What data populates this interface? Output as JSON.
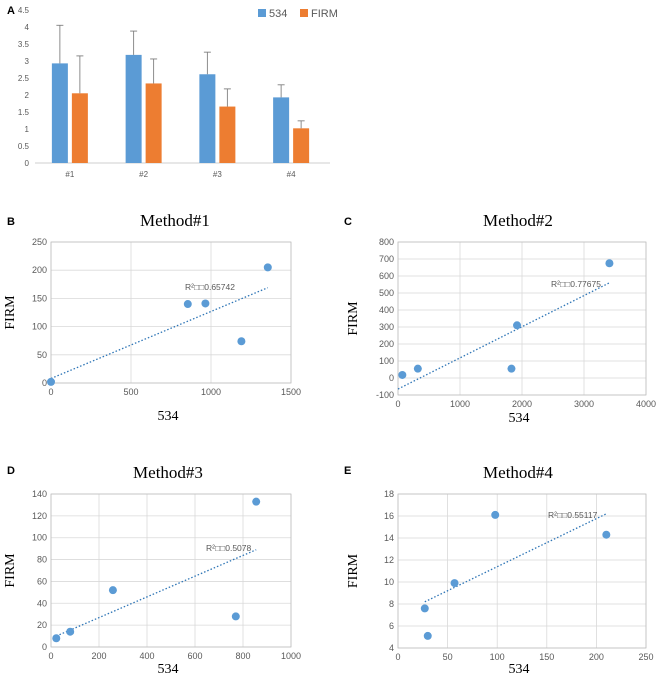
{
  "chart_data": [
    {
      "panel": "A",
      "type": "bar",
      "title": "",
      "xlabel": "",
      "ylabel": "",
      "categories": [
        "#1",
        "#2",
        "#3",
        "#4"
      ],
      "series": [
        {
          "name": "534",
          "color": "#5b9bd5",
          "values": [
            2.93,
            3.18,
            2.61,
            1.93
          ],
          "errors": [
            1.12,
            0.7,
            0.65,
            0.37
          ]
        },
        {
          "name": "FIRM",
          "color": "#ed7d31",
          "values": [
            2.05,
            2.34,
            1.66,
            1.02
          ],
          "errors": [
            1.1,
            0.72,
            0.52,
            0.22
          ]
        }
      ],
      "ylim": [
        0,
        4.5
      ],
      "yticks": [
        "0",
        "0.5",
        "1",
        "1.5",
        "2",
        "2.5",
        "3",
        "3.5",
        "4",
        "4.5"
      ],
      "legend": "top-right",
      "grid": false
    },
    {
      "panel": "B",
      "type": "scatter",
      "title": "Method#1",
      "xlabel": "534",
      "ylabel": "FIRM",
      "xlim": [
        0,
        1500
      ],
      "ylim": [
        0,
        250
      ],
      "xticks": [
        "0",
        "500",
        "1000",
        "1500"
      ],
      "yticks": [
        "0",
        "50",
        "100",
        "150",
        "200",
        "250"
      ],
      "points": [
        [
          0,
          2
        ],
        [
          855,
          140
        ],
        [
          965,
          141
        ],
        [
          1190,
          74
        ],
        [
          1355,
          205
        ]
      ],
      "trendline": {
        "x": [
          0,
          1355
        ],
        "y": [
          8,
          169
        ]
      },
      "r2_label": "R²\u0000\u00000.65742",
      "marker_color": "#5b9bd5",
      "grid": true
    },
    {
      "panel": "C",
      "type": "scatter",
      "title": "Method#2",
      "xlabel": "534",
      "ylabel": "FIRM",
      "xlim": [
        0,
        4000
      ],
      "ylim": [
        -100,
        800
      ],
      "xticks": [
        "0",
        "1000",
        "2000",
        "3000",
        "4000"
      ],
      "yticks": [
        "-100",
        "0",
        "100",
        "200",
        "300",
        "400",
        "500",
        "600",
        "700",
        "800"
      ],
      "points": [
        [
          70,
          18
        ],
        [
          320,
          55
        ],
        [
          1830,
          55
        ],
        [
          1920,
          310
        ],
        [
          3410,
          675
        ]
      ],
      "trendline": {
        "x": [
          0,
          3410
        ],
        "y": [
          -65,
          560
        ]
      },
      "r2_label": "R²\u0000\u00000.77675",
      "marker_color": "#5b9bd5",
      "grid": true
    },
    {
      "panel": "D",
      "type": "scatter",
      "title": "Method#3",
      "xlabel": "534",
      "ylabel": "FIRM",
      "xlim": [
        0,
        1000
      ],
      "ylim": [
        0,
        140
      ],
      "xticks": [
        "0",
        "200",
        "400",
        "600",
        "800",
        "1000"
      ],
      "yticks": [
        "0",
        "20",
        "40",
        "60",
        "80",
        "100",
        "120",
        "140"
      ],
      "points": [
        [
          22,
          8
        ],
        [
          80,
          14
        ],
        [
          258,
          52
        ],
        [
          770,
          28
        ],
        [
          855,
          133
        ]
      ],
      "trendline": {
        "x": [
          22,
          855
        ],
        "y": [
          10,
          89
        ]
      },
      "r2_label": "R²\u0000\u00000.5078",
      "marker_color": "#5b9bd5",
      "grid": true
    },
    {
      "panel": "E",
      "type": "scatter",
      "title": "Method#4",
      "xlabel": "534",
      "ylabel": "FIRM",
      "xlim": [
        0,
        250
      ],
      "ylim": [
        4,
        18
      ],
      "xticks": [
        "0",
        "50",
        "100",
        "150",
        "200",
        "250"
      ],
      "yticks": [
        "4",
        "6",
        "8",
        "10",
        "12",
        "14",
        "16",
        "18"
      ],
      "points": [
        [
          27,
          7.6
        ],
        [
          30,
          5.1
        ],
        [
          57,
          9.9
        ],
        [
          98,
          16.1
        ],
        [
          210,
          14.3
        ]
      ],
      "trendline": {
        "x": [
          27,
          210
        ],
        "y": [
          8.2,
          16.2
        ]
      },
      "r2_label": "R²\u0000\u00000.55117",
      "marker_color": "#5b9bd5",
      "grid": true
    }
  ]
}
